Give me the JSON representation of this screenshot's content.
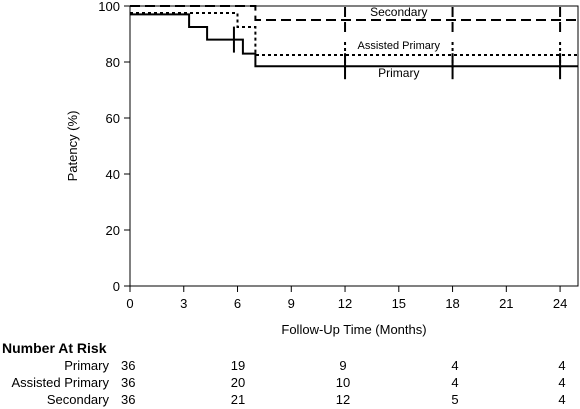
{
  "chart_data": {
    "type": "line",
    "subtype": "kaplan-meier step",
    "title": "",
    "xlabel": "Follow-Up Time (Months)",
    "ylabel": "Patency (%)",
    "xlim": [
      0,
      25
    ],
    "ylim": [
      0,
      100
    ],
    "xticks": [
      0,
      3,
      6,
      9,
      12,
      15,
      18,
      21,
      24
    ],
    "yticks": [
      0,
      20,
      40,
      60,
      80,
      100
    ],
    "grid": false,
    "series": [
      {
        "name": "Secondary",
        "style": "dashed",
        "steps": [
          [
            0,
            100
          ],
          [
            7,
            100
          ],
          [
            7,
            95
          ],
          [
            25,
            95
          ]
        ],
        "censor_marks": [
          12,
          18,
          24
        ]
      },
      {
        "name": "Assisted Primary",
        "style": "dotted",
        "steps": [
          [
            0,
            97.5
          ],
          [
            6,
            97.5
          ],
          [
            6,
            92.5
          ],
          [
            7,
            92.5
          ],
          [
            7,
            82.5
          ],
          [
            25,
            82.5
          ]
        ],
        "censor_marks": [
          12,
          18,
          24
        ]
      },
      {
        "name": "Primary",
        "style": "solid",
        "steps": [
          [
            0,
            97
          ],
          [
            3.3,
            97
          ],
          [
            3.3,
            92.5
          ],
          [
            4.3,
            92.5
          ],
          [
            4.3,
            88
          ],
          [
            6.3,
            88
          ],
          [
            6.3,
            83
          ],
          [
            7,
            83
          ],
          [
            7,
            78.5
          ],
          [
            25,
            78.5
          ]
        ],
        "censor_marks": [
          5.8,
          12,
          18,
          24
        ]
      }
    ]
  },
  "risk_table": {
    "title": "Number At Risk",
    "times": [
      0,
      6,
      12,
      18,
      24
    ],
    "rows": [
      {
        "name": "Primary",
        "values": [
          "36",
          "19",
          "9",
          "4",
          "4"
        ]
      },
      {
        "name": "Assisted Primary",
        "values": [
          "36",
          "20",
          "10",
          "4",
          "4"
        ]
      },
      {
        "name": "Secondary",
        "values": [
          "36",
          "21",
          "12",
          "5",
          "4"
        ]
      }
    ]
  }
}
